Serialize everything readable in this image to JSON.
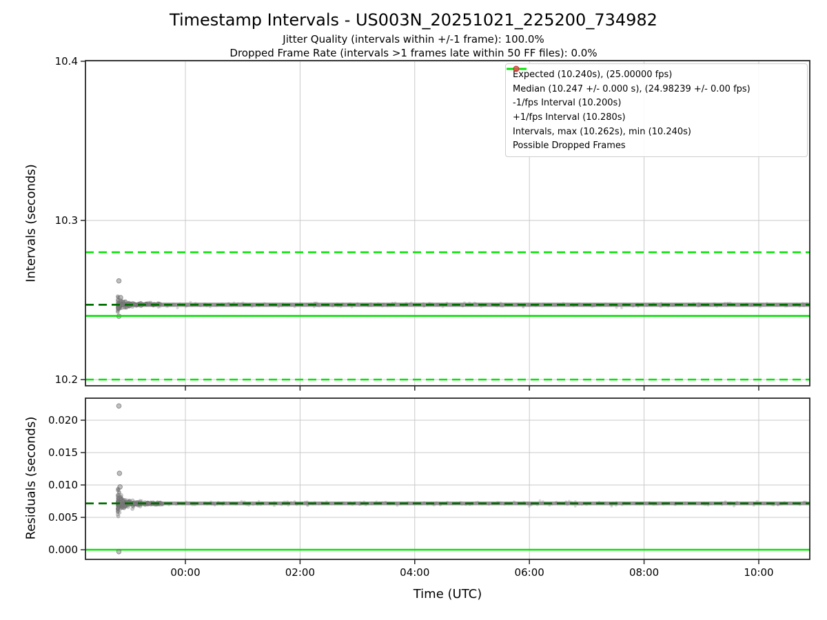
{
  "figure": {
    "title": "Timestamp Intervals - US003N_20251021_225200_734982",
    "subtitle1": "Jitter Quality (intervals within +/-1 frame): 100.0%",
    "subtitle2": "Dropped Frame Rate (intervals >1 frames late within 50 FF files): 0.0%",
    "xlabel": "Time (UTC)",
    "background": "#ffffff"
  },
  "colors": {
    "lime": "#00e400",
    "darkgreen": "#006e00",
    "scatter_gray": "#808080",
    "dropped_red": "#e84a4a",
    "grid": "#c9c9c9",
    "spine": "#262626",
    "text": "#000000",
    "legend_border": "#cccccc"
  },
  "legend": {
    "entries": [
      {
        "marker": "line-solid",
        "color": "lime",
        "label": "Expected (10.240s), (25.00000 fps)"
      },
      {
        "marker": "line-dashed",
        "color": "darkgreen",
        "label": "Median (10.247 +/- 0.000 s), (24.98239 +/- 0.00 fps)"
      },
      {
        "marker": "line-dashed",
        "color": "lime",
        "label": "-1/fps Interval (10.200s)"
      },
      {
        "marker": "line-dashed",
        "color": "lime",
        "label": "+1/fps Interval (10.280s)"
      },
      {
        "marker": "dot",
        "color": "scatter_gray",
        "label": "Intervals, max (10.262s), min (10.240s)"
      },
      {
        "marker": "dot",
        "color": "dropped_red",
        "label": "Possible Dropped Frames"
      }
    ]
  },
  "chart_data": [
    {
      "type": "scatter",
      "ylabel": "Intervals (seconds)",
      "ylim": [
        10.1961,
        10.4004
      ],
      "xlim_hours": [
        -1.743,
        10.89
      ],
      "yticks": [
        {
          "v": 10.2,
          "label": "10.2"
        },
        {
          "v": 10.3,
          "label": "10.3"
        },
        {
          "v": 10.4,
          "label": "10.4"
        }
      ],
      "xticks_hours": [
        0,
        2,
        4,
        6,
        8,
        10
      ],
      "xtick_labels": [
        "00:00",
        "02:00",
        "04:00",
        "06:00",
        "08:00",
        "10:00"
      ],
      "show_xtick_labels": false,
      "grid": true,
      "hlines": [
        {
          "name": "minus-1fps-interval",
          "value": 10.2,
          "style": "dashed",
          "color": "lime",
          "width": 2.6,
          "layer": "below"
        },
        {
          "name": "plus-1fps-interval",
          "value": 10.28,
          "style": "dashed",
          "color": "lime",
          "width": 2.6,
          "layer": "below"
        },
        {
          "name": "expected",
          "value": 10.24,
          "style": "solid",
          "color": "lime",
          "width": 2.6,
          "layer": "above"
        },
        {
          "name": "median",
          "value": 10.247,
          "style": "dashed",
          "color": "darkgreen",
          "width": 2.8,
          "layer": "above"
        }
      ],
      "scatter": {
        "band": {
          "t_start": -1.16,
          "t_end": 10.89,
          "value": 10.247,
          "spread": 0.0013,
          "texture_n": 300,
          "seed": 3
        },
        "cluster": {
          "t_start": -1.18,
          "t_end": -0.4,
          "n": 170,
          "center": 10.2472,
          "spread_max": 0.0022,
          "spread_min": 0.0004,
          "seed": 7
        },
        "outliers": [
          {
            "t": -1.16,
            "v": 10.262
          },
          {
            "t": -1.13,
            "v": 10.2515
          },
          {
            "t": -1.16,
            "v": 10.2398
          }
        ]
      },
      "stats": {
        "expected_s": 10.24,
        "expected_fps": 25.0,
        "median_s": 10.247,
        "median_fps": 24.98239,
        "max_s": 10.262,
        "min_s": 10.24
      }
    },
    {
      "type": "scatter",
      "ylabel": "Residuals (seconds)",
      "ylim": [
        -0.00149,
        0.0234
      ],
      "xlim_hours": [
        -1.743,
        10.89
      ],
      "yticks": [
        {
          "v": 0.0,
          "label": "0.000"
        },
        {
          "v": 0.005,
          "label": "0.005"
        },
        {
          "v": 0.01,
          "label": "0.010"
        },
        {
          "v": 0.015,
          "label": "0.015"
        },
        {
          "v": 0.02,
          "label": "0.020"
        }
      ],
      "xticks_hours": [
        0,
        2,
        4,
        6,
        8,
        10
      ],
      "xtick_labels": [
        "00:00",
        "02:00",
        "04:00",
        "06:00",
        "08:00",
        "10:00"
      ],
      "show_xtick_labels": true,
      "grid": true,
      "hlines": [
        {
          "name": "zero-residual",
          "value": 0.0,
          "style": "solid",
          "color": "lime",
          "width": 2.6,
          "layer": "below"
        },
        {
          "name": "median-residual",
          "value": 0.00715,
          "style": "dashed",
          "color": "darkgreen",
          "width": 2.8,
          "layer": "above"
        }
      ],
      "scatter": {
        "band": {
          "t_start": -1.16,
          "t_end": 10.89,
          "value": 0.00715,
          "spread": 0.00028,
          "texture_n": 300,
          "seed": 5
        },
        "cluster": {
          "t_start": -1.18,
          "t_end": -0.4,
          "n": 240,
          "center": 0.00712,
          "spread_max": 0.00092,
          "spread_min": 0.0001,
          "seed": 11
        },
        "outliers": [
          {
            "t": -1.16,
            "v": 0.0222
          },
          {
            "t": -1.15,
            "v": 0.0118
          },
          {
            "t": -1.14,
            "v": 0.0097
          },
          {
            "t": -1.16,
            "v": -0.0003
          }
        ]
      }
    }
  ]
}
